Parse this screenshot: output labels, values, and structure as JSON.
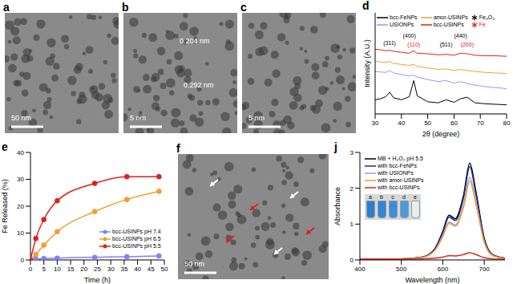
{
  "chart_data": [
    {
      "type": "line",
      "title": "d",
      "xlabel": "2θ (degree)",
      "ylabel": "Intensity (A.U.)",
      "xlim": [
        30,
        80
      ],
      "xticks": [
        30,
        40,
        50,
        60,
        70,
        80
      ],
      "ylim": [
        0,
        1000
      ],
      "tick_labels": "x",
      "x": [
        30,
        32,
        34,
        35.5,
        37,
        40,
        43,
        44.7,
        46,
        50,
        54,
        57,
        60,
        62.5,
        65,
        68,
        72,
        76,
        80
      ],
      "series": [
        {
          "name": "bcc-FeNPs",
          "color": "#000000",
          "values": [
            140,
            150,
            170,
            215,
            160,
            140,
            170,
            330,
            180,
            120,
            110,
            140,
            115,
            150,
            165,
            110,
            100,
            95,
            90
          ]
        },
        {
          "name": "USIONPs",
          "color": "#9999ee",
          "values": [
            420,
            415,
            410,
            430,
            405,
            390,
            375,
            385,
            365,
            340,
            320,
            330,
            305,
            320,
            300,
            285,
            270,
            260,
            250
          ]
        },
        {
          "name": "amor-USINPs",
          "color": "#f0a030",
          "values": [
            520,
            515,
            510,
            520,
            500,
            490,
            480,
            490,
            470,
            455,
            440,
            445,
            430,
            440,
            430,
            420,
            410,
            405,
            400
          ]
        },
        {
          "name": "bcc-USINPs",
          "color": "#e0201b",
          "values": [
            640,
            635,
            625,
            630,
            620,
            610,
            600,
            625,
            600,
            595,
            585,
            590,
            580,
            600,
            595,
            580,
            575,
            575,
            570
          ]
        }
      ],
      "reference_legend": [
        {
          "name": "Fe₃O₄",
          "color": "#000000",
          "marker": "star"
        },
        {
          "name": "Fe",
          "color": "#e0201b",
          "marker": "star"
        }
      ],
      "annotations": [
        {
          "text": "(311)",
          "x": 35.5,
          "y": 700,
          "color": "#000000"
        },
        {
          "text": "(400)",
          "x": 43,
          "y": 770,
          "color": "#000000"
        },
        {
          "text": "(110)",
          "x": 44.7,
          "y": 690,
          "color": "#e0201b"
        },
        {
          "text": "(511)",
          "x": 57,
          "y": 690,
          "color": "#000000"
        },
        {
          "text": "(440)",
          "x": 62.5,
          "y": 770,
          "color": "#000000"
        },
        {
          "text": "(200)",
          "x": 65,
          "y": 690,
          "color": "#e0201b"
        }
      ]
    },
    {
      "type": "line",
      "title": "e",
      "xlabel": "Time (h)",
      "ylabel": "Fe Released (%)",
      "xlim": [
        0,
        50
      ],
      "xticks": [
        0,
        5,
        10,
        15,
        20,
        25,
        30,
        35,
        40,
        45,
        50
      ],
      "ylim": [
        0,
        40
      ],
      "yticks": [
        0,
        10,
        20,
        30,
        40
      ],
      "x": [
        0,
        2,
        5,
        10,
        24,
        36,
        48
      ],
      "series": [
        {
          "name": "bcc-USINPs pH 7.4",
          "color": "#8080ff",
          "marker": "circle",
          "values": [
            0,
            0.3,
            0.5,
            0.7,
            1,
            1.2,
            1.5
          ]
        },
        {
          "name": "bcc-USINPs pH 6.5",
          "color": "#f0a030",
          "marker": "circle",
          "values": [
            0,
            2,
            5.5,
            10.5,
            18,
            22.5,
            25.5
          ]
        },
        {
          "name": "bcc-USINPs pH 5.5",
          "color": "#e0201b",
          "marker": "circle",
          "values": [
            0,
            8,
            15,
            22,
            28.5,
            31,
            31
          ]
        }
      ]
    },
    {
      "type": "line",
      "title": "j",
      "xlabel": "Wavelength (nm)",
      "ylabel": "Absorbance",
      "xlim": [
        400,
        750
      ],
      "xticks": [
        400,
        500,
        600,
        700
      ],
      "ylim": [
        0,
        3
      ],
      "yticks": [
        0,
        1,
        2,
        3
      ],
      "x": [
        400,
        450,
        500,
        550,
        580,
        600,
        615,
        630,
        650,
        665,
        680,
        700,
        720,
        750
      ],
      "series": [
        {
          "name": "MB + H₂O₂ pH 5.5",
          "color": "#000000",
          "values": [
            0.02,
            0.02,
            0.03,
            0.08,
            0.3,
            0.8,
            1.25,
            1.15,
            1.8,
            2.7,
            1.9,
            0.6,
            0.15,
            0.05
          ]
        },
        {
          "name": "with bcc-FeNPs",
          "color": "#1f2a80",
          "values": [
            0.02,
            0.02,
            0.03,
            0.08,
            0.29,
            0.77,
            1.2,
            1.1,
            1.73,
            2.6,
            1.83,
            0.58,
            0.14,
            0.05
          ]
        },
        {
          "name": "with USIONPs",
          "color": "#9999ee",
          "values": [
            0.02,
            0.02,
            0.03,
            0.07,
            0.26,
            0.68,
            1.06,
            0.98,
            1.53,
            2.3,
            1.62,
            0.51,
            0.13,
            0.04
          ]
        },
        {
          "name": "with amor-USINPs",
          "color": "#f0a030",
          "values": [
            0.02,
            0.02,
            0.03,
            0.07,
            0.25,
            0.65,
            1.02,
            0.94,
            1.47,
            2.2,
            1.55,
            0.49,
            0.12,
            0.04
          ]
        },
        {
          "name": "with bcc-USINPs",
          "color": "#e0201b",
          "values": [
            0.02,
            0.02,
            0.02,
            0.03,
            0.05,
            0.08,
            0.12,
            0.11,
            0.15,
            0.2,
            0.15,
            0.06,
            0.03,
            0.02
          ]
        }
      ],
      "inset_labels": [
        "a",
        "b",
        "c",
        "d",
        "e"
      ]
    }
  ],
  "images": [
    {
      "title": "a",
      "scale_bar": "50 nm"
    },
    {
      "title": "b",
      "scale_bar": "5 nm",
      "annotations": [
        "0.204 nm",
        "0.292 nm"
      ]
    },
    {
      "title": "c",
      "scale_bar": "5 nm"
    },
    {
      "title": "f",
      "scale_bar": "50 nm"
    }
  ]
}
